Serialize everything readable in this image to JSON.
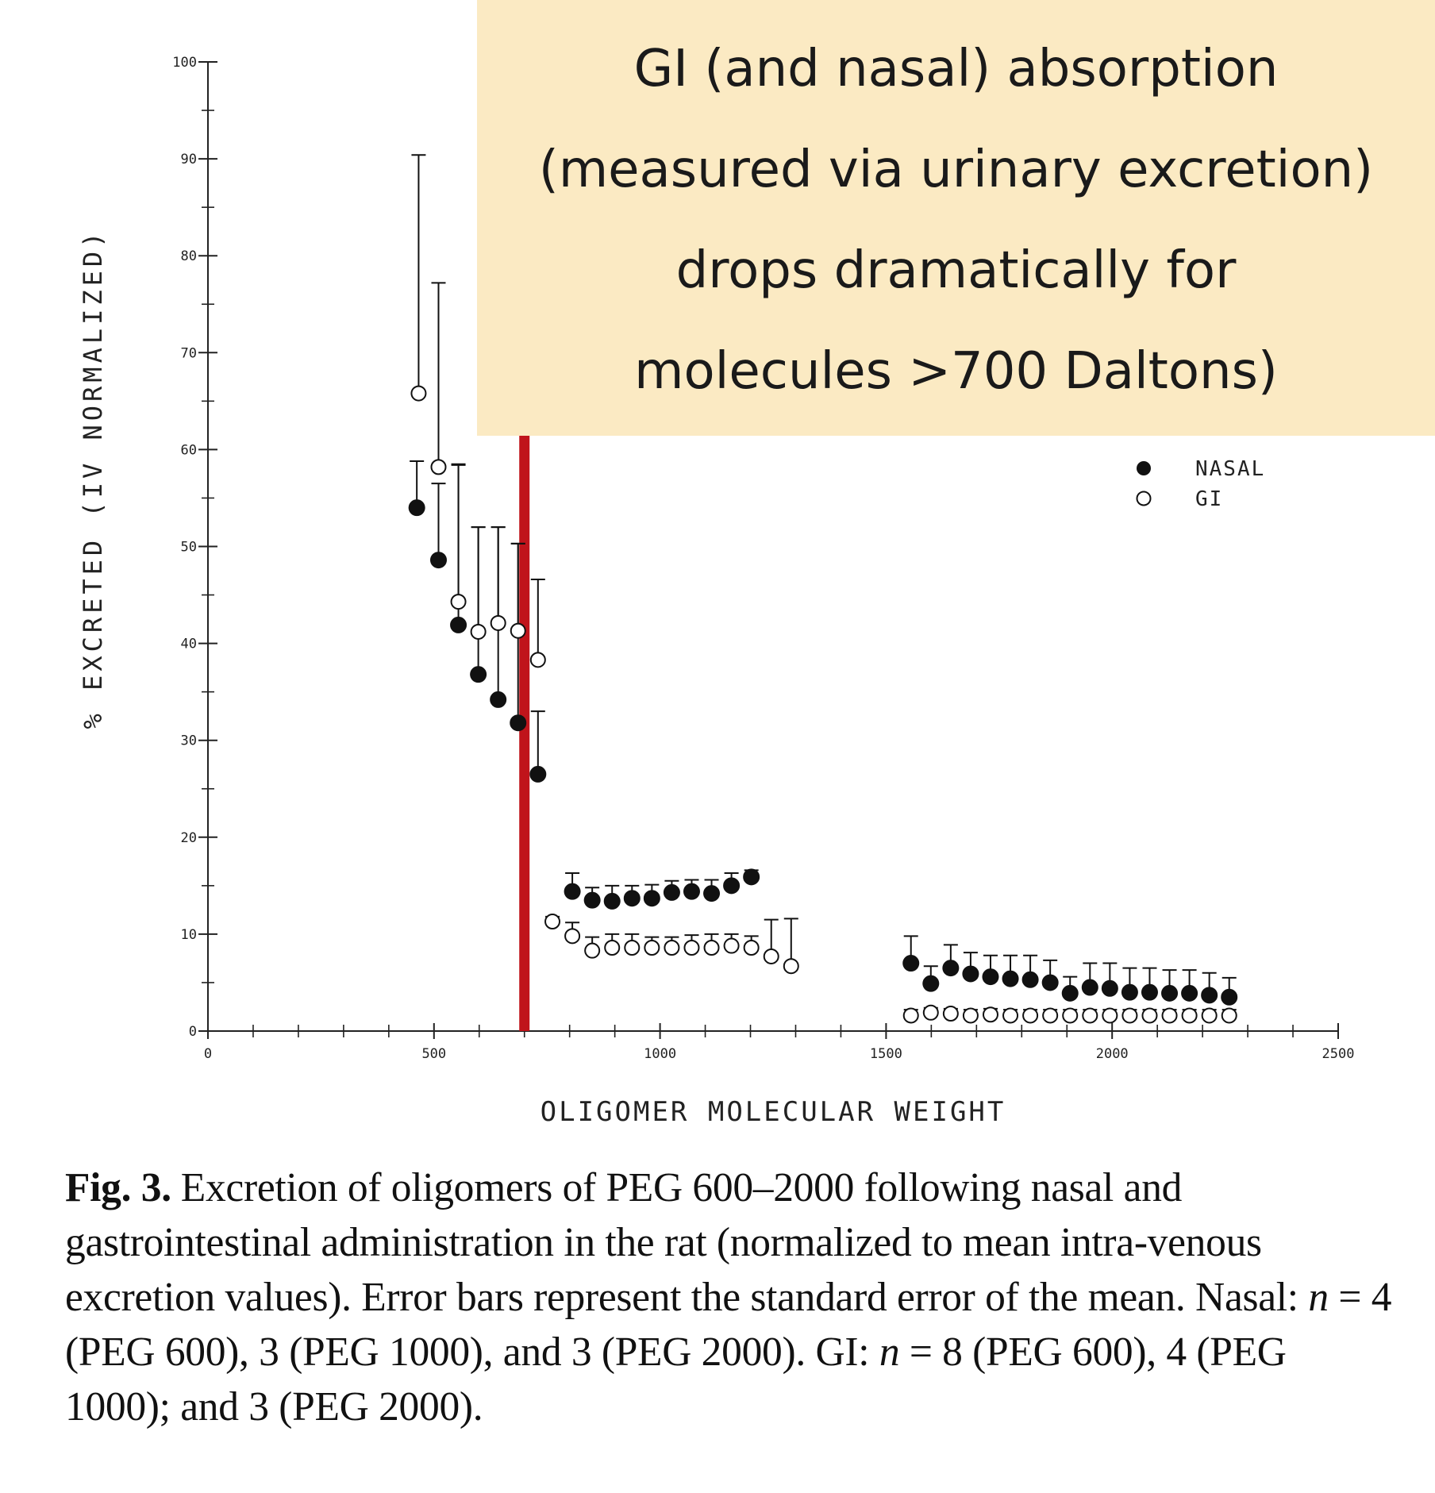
{
  "callout": {
    "lines": [
      "GI (and nasal) absorption",
      "(measured via urinary excretion)",
      "drops dramatically for",
      "molecules >700 Daltons)"
    ],
    "background": "#fbeac3"
  },
  "caption": {
    "label": "Fig. 3.",
    "text_1": "Excretion of oligomers of PEG 600–2000 following nasal and gastrointestinal administration in the rat (normalized to mean intra-venous excretion values). Error bars represent the standard error of the mean. Nasal: ",
    "n1": "n",
    "text_2": " = 4 (PEG 600), 3 (PEG 1000), and 3 (PEG 2000). GI: ",
    "n2": "n",
    "text_3": " = 8 (PEG 600), 4 (PEG 1000); and 3 (PEG 2000)."
  },
  "chart_data": {
    "type": "scatter",
    "title": "",
    "xlabel": "OLIGOMER MOLECULAR WEIGHT",
    "ylabel": "% EXCRETED (IV NORMALIZED)",
    "xlim": [
      0,
      2500
    ],
    "ylim": [
      0,
      100
    ],
    "x_ticks": [
      "0",
      "500",
      "1000",
      "1500",
      "2000",
      "2500"
    ],
    "y_ticks": [
      "0",
      "10",
      "20",
      "30",
      "40",
      "50",
      "60",
      "70",
      "80",
      "90",
      "100"
    ],
    "threshold_line": {
      "x": 700,
      "color": "#c0141b"
    },
    "legend_position": "right",
    "series": [
      {
        "name": "NASAL",
        "marker": "filled-circle",
        "points": [
          [
            462,
            54.0,
            58.8
          ],
          [
            510,
            48.6,
            56.5
          ],
          [
            554,
            41.9,
            58.4
          ],
          [
            598,
            36.8,
            52.0
          ],
          [
            642,
            34.2,
            52.0
          ],
          [
            686,
            31.8,
            50.3
          ],
          [
            730,
            26.5,
            33.0
          ],
          [
            806,
            14.4,
            16.3
          ],
          [
            850,
            13.5,
            14.8
          ],
          [
            894,
            13.4,
            15.0
          ],
          [
            938,
            13.7,
            15.0
          ],
          [
            982,
            13.7,
            15.1
          ],
          [
            1026,
            14.3,
            15.5
          ],
          [
            1070,
            14.4,
            15.6
          ],
          [
            1114,
            14.2,
            15.6
          ],
          [
            1158,
            15.0,
            16.3
          ],
          [
            1202,
            15.9,
            16.6
          ],
          [
            1555,
            7.0,
            9.8
          ],
          [
            1599,
            4.9,
            6.7
          ],
          [
            1643,
            6.5,
            8.9
          ],
          [
            1687,
            5.9,
            8.1
          ],
          [
            1731,
            5.6,
            7.8
          ],
          [
            1775,
            5.4,
            7.8
          ],
          [
            1819,
            5.3,
            7.8
          ],
          [
            1863,
            5.0,
            7.3
          ],
          [
            1907,
            3.9,
            5.6
          ],
          [
            1951,
            4.5,
            7.0
          ],
          [
            1995,
            4.4,
            7.0
          ],
          [
            2039,
            4.0,
            6.5
          ],
          [
            2083,
            4.0,
            6.5
          ],
          [
            2127,
            3.9,
            6.3
          ],
          [
            2171,
            3.9,
            6.3
          ],
          [
            2215,
            3.7,
            6.0
          ],
          [
            2259,
            3.5,
            5.5
          ]
        ]
      },
      {
        "name": "GI",
        "marker": "open-circle",
        "points": [
          [
            466,
            65.8,
            90.4
          ],
          [
            510,
            58.2,
            77.2
          ],
          [
            554,
            44.3,
            58.5
          ],
          [
            598,
            41.2,
            52.0
          ],
          [
            642,
            42.1,
            52.0
          ],
          [
            686,
            41.3,
            50.3
          ],
          [
            730,
            38.3,
            46.6
          ],
          [
            762,
            11.3,
            11.8
          ],
          [
            806,
            9.8,
            11.2
          ],
          [
            850,
            8.3,
            9.7
          ],
          [
            894,
            8.6,
            10.0
          ],
          [
            938,
            8.6,
            10.0
          ],
          [
            982,
            8.6,
            9.7
          ],
          [
            1026,
            8.6,
            9.7
          ],
          [
            1070,
            8.6,
            9.9
          ],
          [
            1114,
            8.6,
            10.0
          ],
          [
            1158,
            8.8,
            10.0
          ],
          [
            1202,
            8.6,
            9.8
          ],
          [
            1246,
            7.7,
            11.5
          ],
          [
            1290,
            6.7,
            11.6
          ],
          [
            1555,
            1.6,
            2.2
          ],
          [
            1599,
            1.9,
            2.4
          ],
          [
            1643,
            1.8,
            2.3
          ],
          [
            1687,
            1.6,
            2.2
          ],
          [
            1731,
            1.7,
            2.3
          ],
          [
            1775,
            1.6,
            2.2
          ],
          [
            1819,
            1.6,
            2.2
          ],
          [
            1863,
            1.6,
            2.2
          ],
          [
            1907,
            1.6,
            2.2
          ],
          [
            1951,
            1.6,
            2.2
          ],
          [
            1995,
            1.6,
            2.2
          ],
          [
            2039,
            1.6,
            2.2
          ],
          [
            2083,
            1.6,
            2.2
          ],
          [
            2127,
            1.6,
            2.2
          ],
          [
            2171,
            1.6,
            2.2
          ],
          [
            2215,
            1.6,
            2.2
          ],
          [
            2259,
            1.6,
            2.2
          ]
        ]
      }
    ]
  }
}
